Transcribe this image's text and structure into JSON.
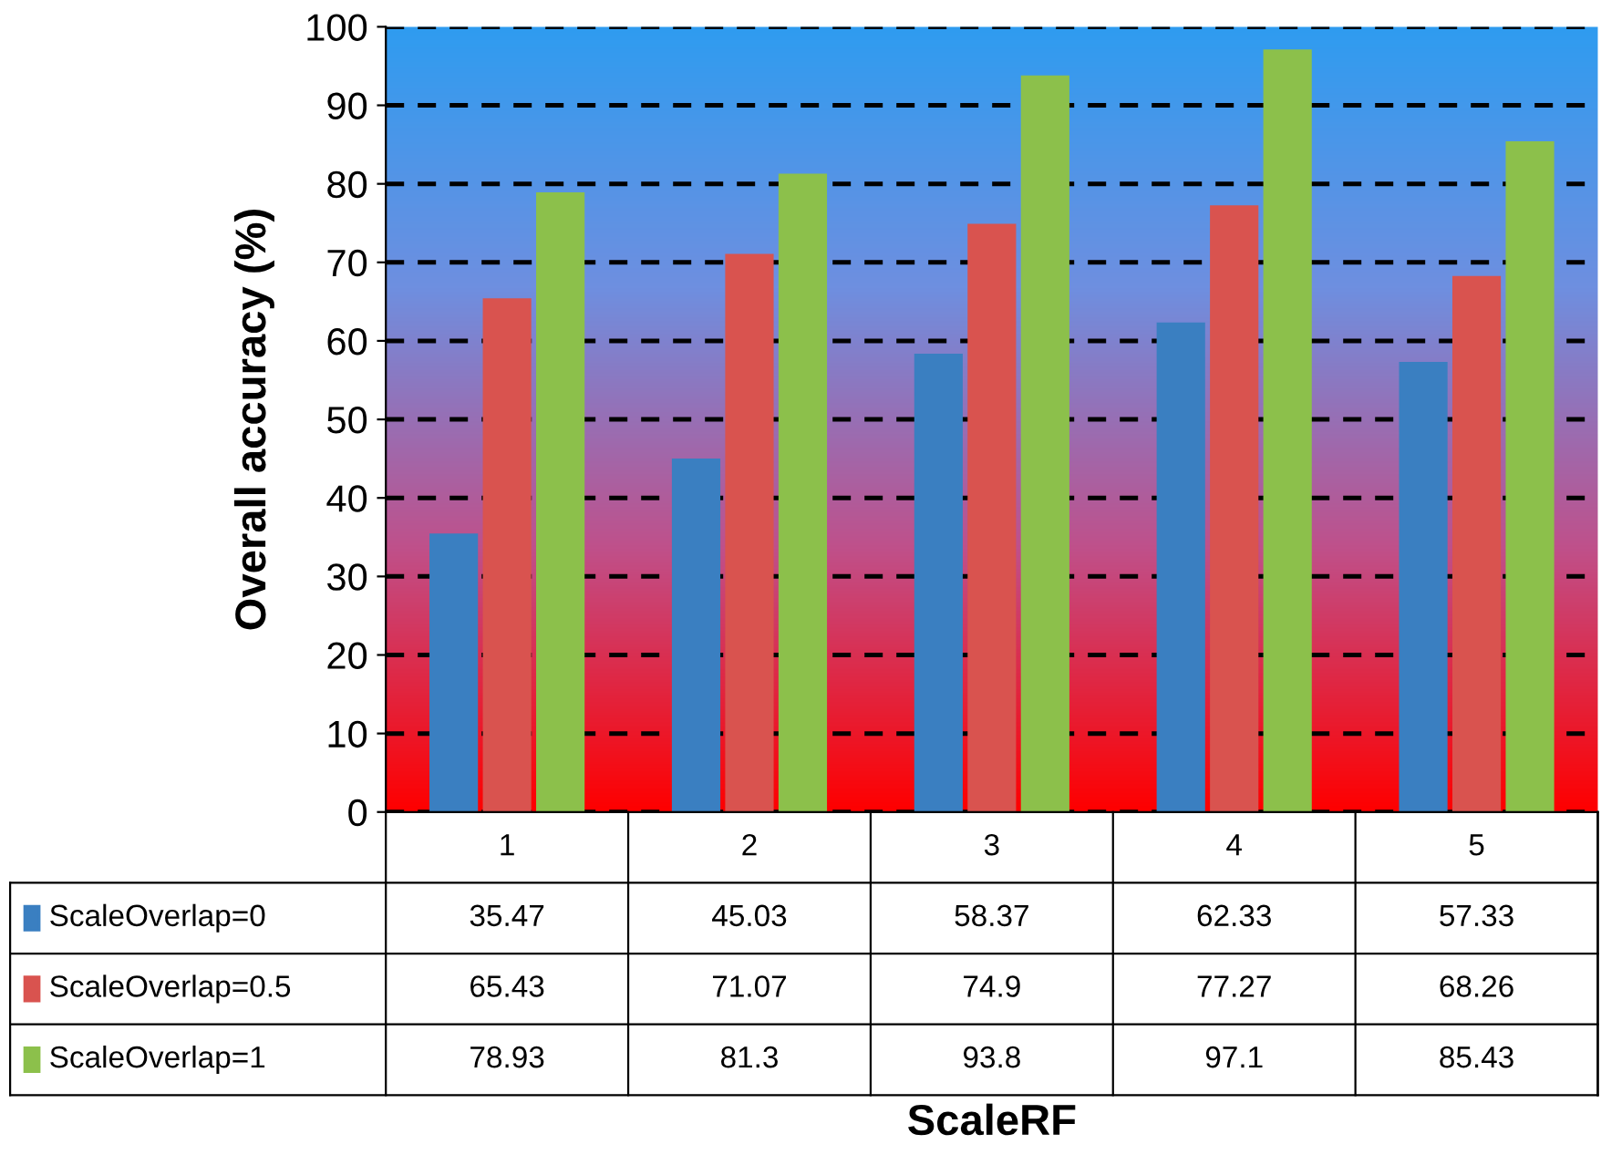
{
  "chart_data": {
    "type": "bar",
    "annotations": [
      "ScaleRF"
    ],
    "ylabel": "Overall accuracy (%)",
    "categories": [
      "1",
      "2",
      "3",
      "4",
      "5"
    ],
    "series": [
      {
        "name": "ScaleOverlap=0",
        "color": "#3a7fc1",
        "values": [
          35.47,
          45.03,
          58.37,
          62.33,
          57.33
        ]
      },
      {
        "name": "ScaleOverlap=0.5",
        "color": "#d9534f",
        "values": [
          65.43,
          71.07,
          74.9,
          77.27,
          68.26
        ]
      },
      {
        "name": "ScaleOverlap=1",
        "color": "#8cc04b",
        "values": [
          78.93,
          81.3,
          93.8,
          97.1,
          85.43
        ]
      }
    ],
    "ylim": [
      0,
      100
    ],
    "yticks": [
      0,
      10,
      20,
      30,
      40,
      50,
      60,
      70,
      80,
      90,
      100
    ],
    "grid": "y",
    "legend": "bottom",
    "data_labels": true,
    "tick_labels": "y"
  }
}
